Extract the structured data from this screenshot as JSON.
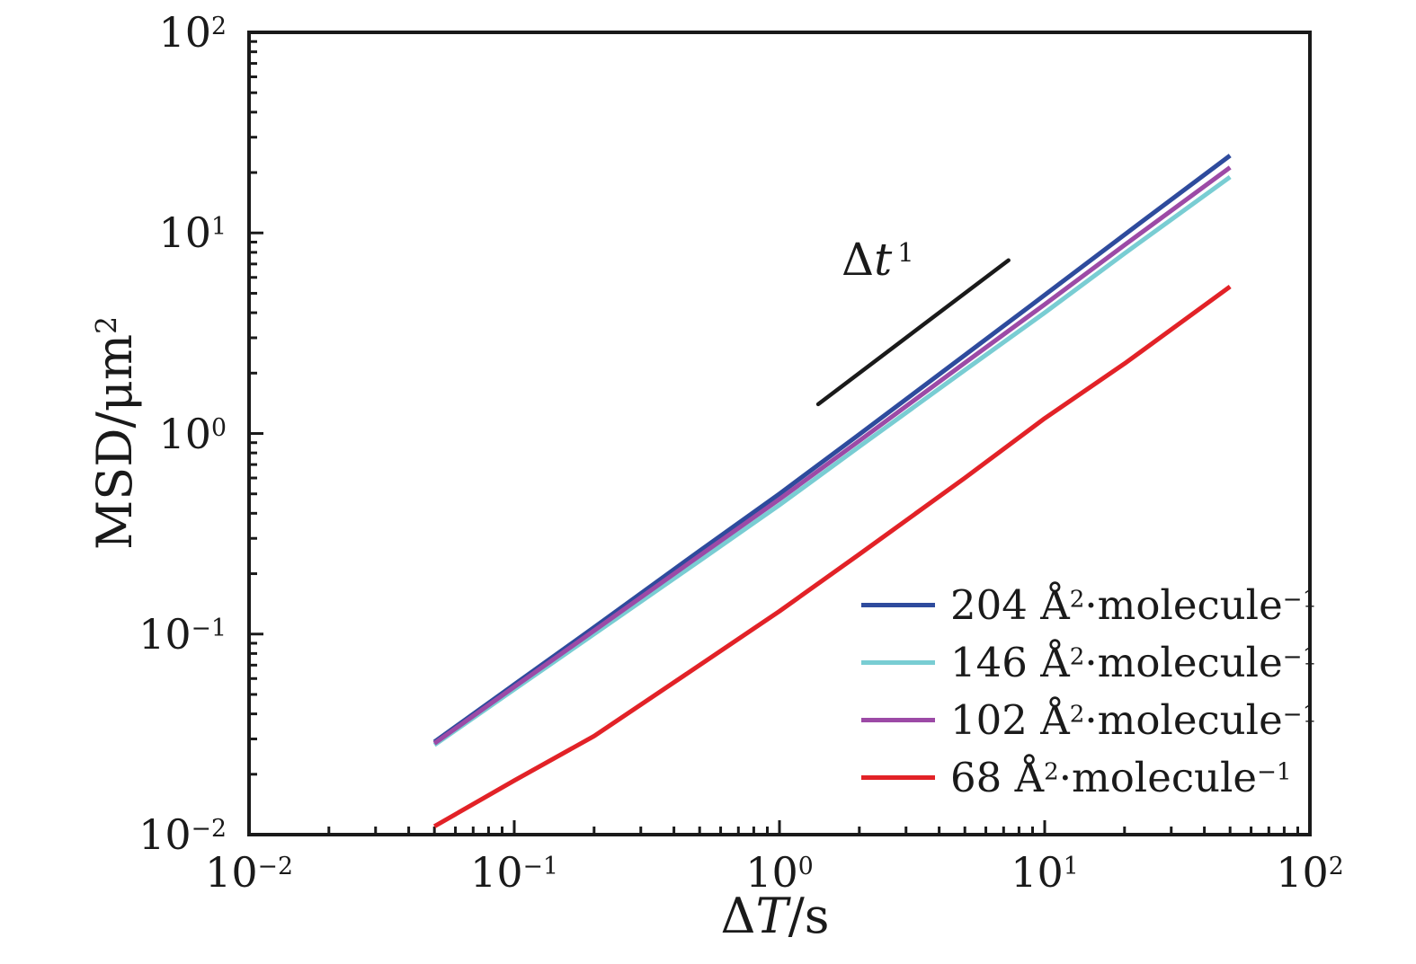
{
  "figure": {
    "background": "#ffffff",
    "frame_color": "#1a1a1a"
  },
  "chart_data": {
    "type": "line",
    "scale": "log-log",
    "title": "",
    "xlabel": "ΔT/s",
    "xlabel_parts": {
      "prefix": "Δ",
      "symbol": "T",
      "suffix": "/s"
    },
    "ylabel": "MSD/μm²",
    "xlim": [
      0.01,
      100
    ],
    "ylim": [
      0.01,
      100
    ],
    "grid": false,
    "legend_position": "lower right",
    "x_ticks": [
      0.01,
      0.1,
      1,
      10,
      100
    ],
    "x_tick_labels": [
      "10⁻²",
      "10⁻¹",
      "10⁰",
      "10¹",
      "10²"
    ],
    "y_ticks": [
      0.01,
      0.1,
      1,
      10,
      100
    ],
    "y_tick_labels": [
      "10⁻²",
      "10⁻¹",
      "10⁰",
      "10¹",
      "10²"
    ],
    "minor_ticks_per_decade": [
      2,
      3,
      4,
      5,
      6,
      7,
      8,
      9
    ],
    "x": [
      0.05,
      0.1,
      0.2,
      0.5,
      1,
      2,
      5,
      10,
      20,
      50
    ],
    "series": [
      {
        "name": "204 Å²·molecule⁻¹",
        "color": "#2e4b9d",
        "values": [
          0.029,
          0.056,
          0.108,
          0.26,
          0.5,
          0.99,
          2.46,
          4.9,
          9.8,
          24.3
        ]
      },
      {
        "name": "146 Å²·molecule⁻¹",
        "color": "#79cdd3",
        "values": [
          0.028,
          0.053,
          0.1,
          0.232,
          0.44,
          0.86,
          2.07,
          4.0,
          7.9,
          19.0
        ]
      },
      {
        "name": "102 Å²·molecule⁻¹",
        "color": "#9c4aa6",
        "values": [
          0.0285,
          0.0545,
          0.104,
          0.246,
          0.47,
          0.92,
          2.25,
          4.4,
          8.7,
          21.2
        ]
      },
      {
        "name": "68 Å²·molecule⁻¹",
        "color": "#e22227",
        "values": [
          0.011,
          0.0186,
          0.031,
          0.07,
          0.13,
          0.25,
          0.6,
          1.19,
          2.23,
          5.4
        ]
      }
    ],
    "guide": {
      "label": "Δt¹",
      "label_parts": {
        "prefix": "Δ",
        "symbol": "t",
        "exponent": "1"
      },
      "x": [
        1.4,
        7.3
      ],
      "y": [
        1.4,
        7.3
      ],
      "color": "#1a1a1a"
    }
  }
}
